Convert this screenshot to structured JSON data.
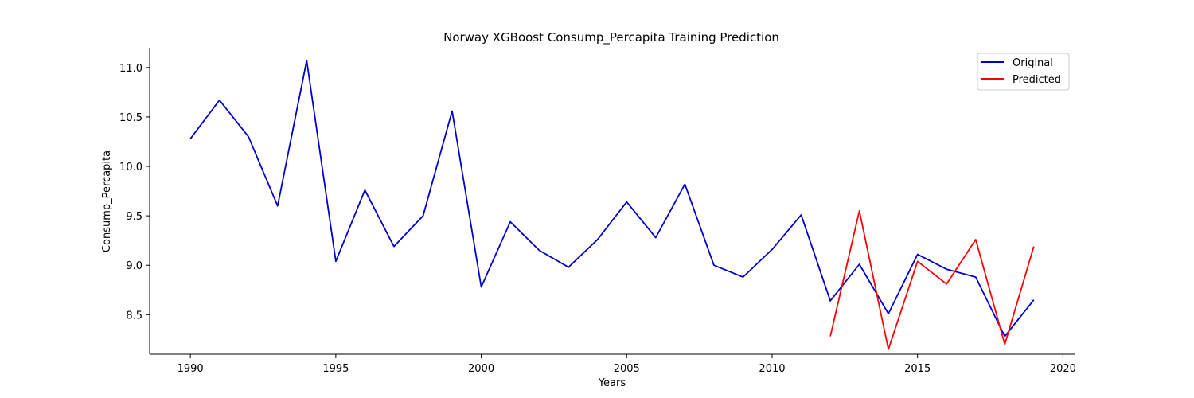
{
  "chart_data": {
    "type": "line",
    "title": "Norway XGBoost Consump_Percapita Training Prediction",
    "xlabel": "Years",
    "ylabel": "Consump_Percapita",
    "xlim": [
      1988.6,
      2020.4
    ],
    "ylim": [
      8.1,
      11.2
    ],
    "x_ticks": [
      1990,
      1995,
      2000,
      2005,
      2010,
      2015,
      2020
    ],
    "y_ticks": [
      8.5,
      9.0,
      9.5,
      10.0,
      10.5,
      11.0
    ],
    "x_tick_labels": [
      "1990",
      "1995",
      "2000",
      "2005",
      "2010",
      "2015",
      "2020"
    ],
    "y_tick_labels": [
      "8.5",
      "9.0",
      "9.5",
      "10.0",
      "10.5",
      "11.0"
    ],
    "grid": false,
    "legend_position": "top-right",
    "series": [
      {
        "name": "Original",
        "color": "#0000cc",
        "x": [
          1990,
          1991,
          1992,
          1993,
          1994,
          1995,
          1996,
          1997,
          1998,
          1999,
          2000,
          2001,
          2002,
          2003,
          2004,
          2005,
          2006,
          2007,
          2008,
          2009,
          2010,
          2011,
          2012,
          2013,
          2014,
          2015,
          2016,
          2017,
          2018,
          2019
        ],
        "values": [
          10.28,
          10.67,
          10.3,
          9.6,
          11.07,
          9.04,
          9.76,
          9.19,
          9.5,
          10.56,
          8.78,
          9.44,
          9.15,
          8.98,
          9.26,
          9.64,
          9.28,
          9.82,
          9.0,
          8.88,
          9.16,
          9.51,
          8.64,
          9.01,
          8.51,
          9.11,
          8.96,
          8.88,
          8.28,
          8.65
        ]
      },
      {
        "name": "Predicted",
        "color": "#ff0000",
        "x": [
          2012,
          2013,
          2014,
          2015,
          2016,
          2017,
          2018,
          2019
        ],
        "values": [
          8.28,
          9.55,
          8.15,
          9.04,
          8.81,
          9.26,
          8.2,
          9.19
        ]
      }
    ]
  }
}
